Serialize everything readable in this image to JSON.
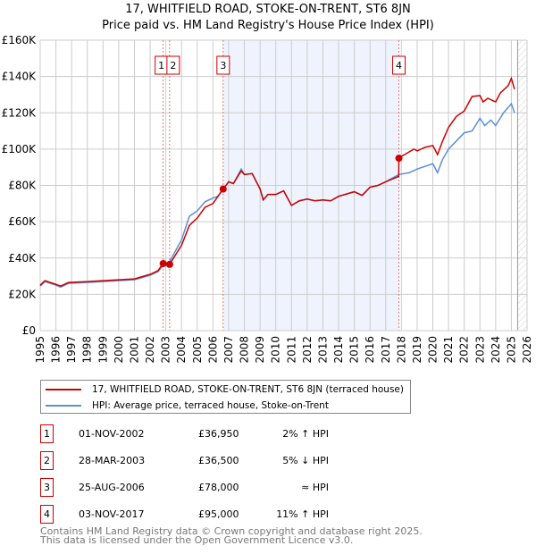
{
  "title": "17, WHITFIELD ROAD, STOKE-ON-TRENT, ST6 8JN",
  "subtitle": "Price paid vs. HM Land Registry's House Price Index (HPI)",
  "colors": {
    "property": "#cc0000",
    "hpi": "#5b8fd4",
    "shade": "#eef3fd"
  },
  "chart_data": {
    "type": "line",
    "ylabel": "",
    "xlabel": "",
    "ylim": [
      0,
      160000
    ],
    "xlim": [
      1995,
      2026
    ],
    "yticks": [
      "£0",
      "£20K",
      "£40K",
      "£60K",
      "£80K",
      "£100K",
      "£120K",
      "£140K",
      "£160K"
    ],
    "xticks": [
      "1995",
      "1996",
      "1997",
      "1998",
      "1999",
      "2000",
      "2001",
      "2002",
      "2003",
      "2004",
      "2005",
      "2006",
      "2007",
      "2008",
      "2009",
      "2010",
      "2011",
      "2012",
      "2013",
      "2014",
      "2015",
      "2016",
      "2017",
      "2018",
      "2019",
      "2020",
      "2021",
      "2022",
      "2023",
      "2024",
      "2025",
      "2026"
    ],
    "shaded_range": [
      2006.65,
      2017.84
    ],
    "hatched_from": 2025.4,
    "series": [
      {
        "name": "17, WHITFIELD ROAD, STOKE-ON-TRENT, ST6 8JN (terraced house)",
        "x": [
          1995,
          1995.3,
          1996,
          1996.3,
          1996.8,
          1998,
          1999,
          2000,
          2001,
          2002,
          2002.5,
          2002.83,
          2003.24,
          2004,
          2004.5,
          2005,
          2005.5,
          2006,
          2006.65,
          2007,
          2007.3,
          2007.8,
          2008,
          2008.5,
          2009,
          2009.2,
          2009.5,
          2010,
          2010.5,
          2011,
          2011.5,
          2012,
          2012.5,
          2013,
          2013.5,
          2014,
          2015,
          2015.5,
          2016,
          2016.5,
          2017,
          2017.83,
          2017.84,
          2018,
          2018.8,
          2019,
          2019.5,
          2020,
          2020.3,
          2020.6,
          2021,
          2021.5,
          2022,
          2022.5,
          2023,
          2023.2,
          2023.5,
          2024,
          2024.3,
          2024.8,
          2025,
          2025.2
        ],
        "y": [
          25000,
          27500,
          25500,
          24500,
          26500,
          27000,
          27500,
          28000,
          28500,
          31000,
          33000,
          36950,
          36500,
          47000,
          58000,
          62000,
          68000,
          70000,
          78000,
          82000,
          81000,
          88000,
          86000,
          86500,
          78000,
          72000,
          75000,
          75000,
          77000,
          69000,
          71500,
          72500,
          71500,
          72000,
          71500,
          74000,
          76500,
          74500,
          79000,
          80000,
          82000,
          85000,
          95000,
          96000,
          100000,
          99000,
          101000,
          102000,
          97000,
          104000,
          112000,
          118000,
          121000,
          129000,
          129500,
          126000,
          128000,
          126000,
          131000,
          135000,
          139000,
          133000
        ]
      },
      {
        "name": "HPI: Average price, terraced house, Stoke-on-Trent",
        "x": [
          1995,
          1995.3,
          1996,
          1996.3,
          1996.8,
          1998,
          1999,
          2000,
          2001,
          2002,
          2002.5,
          2002.83,
          2003.24,
          2004,
          2004.5,
          2005,
          2005.5,
          2006,
          2006.3,
          2006.65,
          2007,
          2007.3,
          2007.8,
          2008,
          2008.5,
          2009,
          2009.2,
          2009.5,
          2010,
          2010.5,
          2011,
          2011.5,
          2012,
          2012.5,
          2013,
          2013.5,
          2014,
          2015,
          2015.5,
          2016,
          2016.5,
          2017,
          2017.83,
          2018.5,
          2019,
          2020,
          2020.3,
          2020.6,
          2021,
          2022,
          2022.5,
          2023,
          2023.3,
          2023.7,
          2024,
          2024.5,
          2025,
          2025.2
        ],
        "y": [
          24500,
          27000,
          25000,
          24000,
          26000,
          26500,
          27000,
          27500,
          28000,
          30500,
          32500,
          36000,
          38000,
          50000,
          63000,
          66000,
          71000,
          73000,
          74000,
          78000,
          82000,
          81000,
          89000,
          86000,
          86500,
          78000,
          72000,
          75000,
          75000,
          77000,
          69000,
          71500,
          72500,
          71500,
          72000,
          71500,
          74000,
          76500,
          74500,
          79000,
          80000,
          82000,
          86000,
          87000,
          89000,
          92000,
          87000,
          94000,
          100000,
          109000,
          110000,
          117000,
          113000,
          116000,
          113000,
          120000,
          125000,
          120000
        ]
      }
    ],
    "sales": [
      {
        "label": "1",
        "x": 2002.83,
        "y": 36950
      },
      {
        "label": "2",
        "x": 2003.24,
        "y": 36500
      },
      {
        "label": "3",
        "x": 2006.65,
        "y": 78000
      },
      {
        "label": "4",
        "x": 2017.84,
        "y": 95000
      }
    ]
  },
  "legend": {
    "property": "17, WHITFIELD ROAD, STOKE-ON-TRENT, ST6 8JN (terraced house)",
    "hpi": "HPI: Average price, terraced house, Stoke-on-Trent"
  },
  "transactions": [
    {
      "num": "1",
      "date": "01-NOV-2002",
      "price": "£36,950",
      "hpi": "2% ↑ HPI"
    },
    {
      "num": "2",
      "date": "28-MAR-2003",
      "price": "£36,500",
      "hpi": "5% ↓ HPI"
    },
    {
      "num": "3",
      "date": "25-AUG-2006",
      "price": "£78,000",
      "hpi": "≈ HPI"
    },
    {
      "num": "4",
      "date": "03-NOV-2017",
      "price": "£95,000",
      "hpi": "11% ↑ HPI"
    }
  ],
  "footer": {
    "line1": "Contains HM Land Registry data © Crown copyright and database right 2025.",
    "line2": "This data is licensed under the Open Government Licence v3.0."
  }
}
